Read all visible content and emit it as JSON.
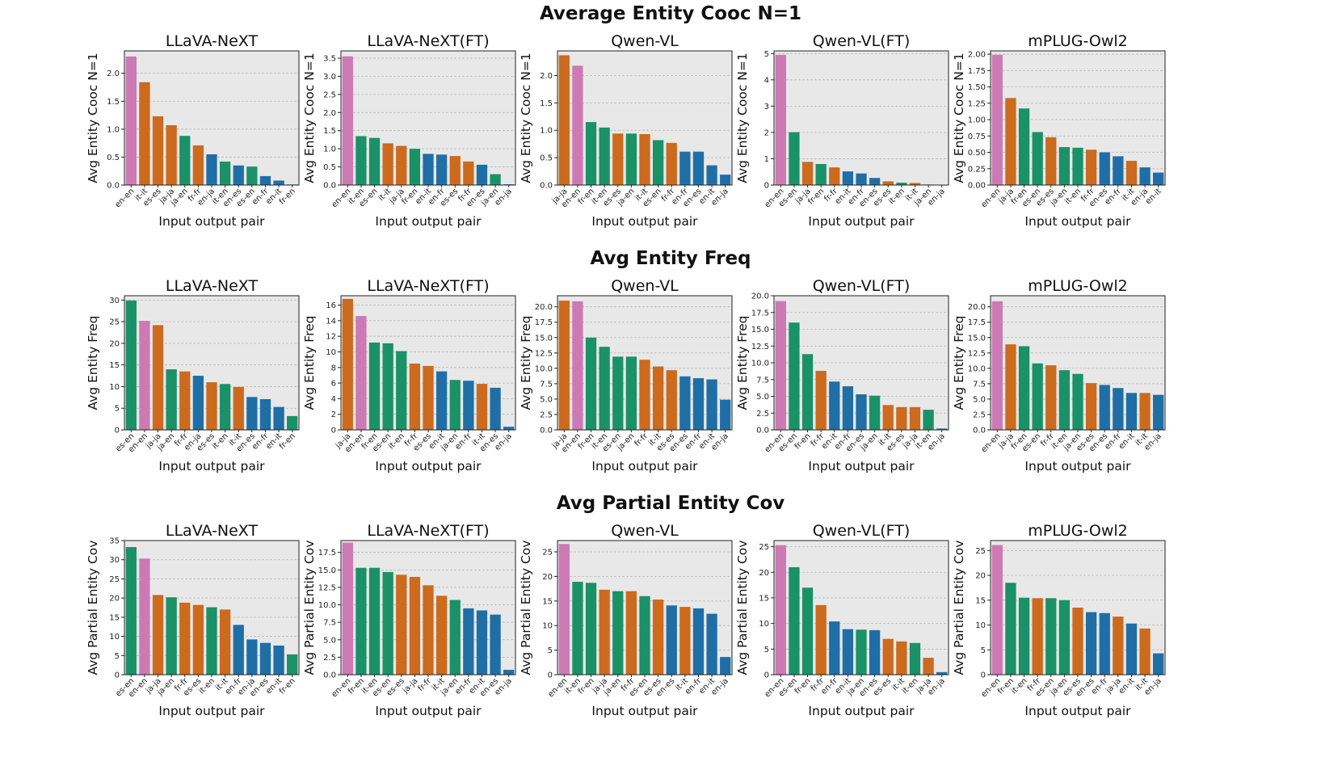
{
  "colors": {
    "en-en": "#cc79b4",
    "orange": "#cc6a1e",
    "green": "#1b9168",
    "blue": "#1f6fa6",
    "panel_bg": "#e8e8e8",
    "grid": "#b8b8b8"
  },
  "chart_data": [
    {
      "section": "Average Entity Cooc N=1",
      "charts": [
        {
          "type": "bar",
          "title": "LLaVA-NeXT",
          "xlabel": "Input output pair",
          "ylabel": "Avg Entity Cooc N=1",
          "ylim": [
            0,
            2.4
          ],
          "yticks": [
            "0.0",
            "0.5",
            "1.0",
            "1.5",
            "2.0"
          ],
          "categories": [
            "en-en",
            "it-it",
            "es-es",
            "ja-ja",
            "ja-en",
            "fr-fr",
            "en-ja",
            "it-en",
            "en-es",
            "es-en",
            "en-fr",
            "en-it",
            "fr-en"
          ],
          "values": [
            2.3,
            1.84,
            1.23,
            1.07,
            0.88,
            0.71,
            0.55,
            0.42,
            0.35,
            0.33,
            0.16,
            0.08,
            0.01
          ]
        },
        {
          "type": "bar",
          "title": "LLaVA-NeXT(FT)",
          "xlabel": "Input output pair",
          "ylabel": "Avg Entity Cooc N=1",
          "ylim": [
            0,
            3.7
          ],
          "yticks": [
            "0.0",
            "0.5",
            "1.0",
            "1.5",
            "2.0",
            "2.5",
            "3.0",
            "3.5"
          ],
          "categories": [
            "en-en",
            "it-en",
            "es-en",
            "it-it",
            "ja-ja",
            "fr-en",
            "en-it",
            "en-fr",
            "es-es",
            "fr-fr",
            "en-es",
            "ja-en",
            "en-ja"
          ],
          "values": [
            3.55,
            1.35,
            1.3,
            1.15,
            1.08,
            1.0,
            0.86,
            0.84,
            0.8,
            0.65,
            0.56,
            0.3,
            0.02
          ]
        },
        {
          "type": "bar",
          "title": "Qwen-VL",
          "xlabel": "Input output pair",
          "ylabel": "Avg Entity Cooc N=1",
          "ylim": [
            0,
            2.45
          ],
          "yticks": [
            "0.0",
            "0.5",
            "1.0",
            "1.5",
            "2.0"
          ],
          "categories": [
            "ja-ja",
            "en-en",
            "fr-en",
            "it-en",
            "es-es",
            "ja-en",
            "it-it",
            "es-en",
            "fr-fr",
            "en-fr",
            "en-es",
            "en-it",
            "en-ja"
          ],
          "values": [
            2.37,
            2.18,
            1.15,
            1.05,
            0.94,
            0.94,
            0.93,
            0.82,
            0.77,
            0.61,
            0.61,
            0.36,
            0.19
          ]
        },
        {
          "type": "bar",
          "title": "Qwen-VL(FT)",
          "xlabel": "Input output pair",
          "ylabel": "Avg Entity Cooc N=1",
          "ylim": [
            0,
            5.1
          ],
          "yticks": [
            "0",
            "1",
            "2",
            "3",
            "4",
            "5"
          ],
          "categories": [
            "en-en",
            "es-en",
            "ja-ja",
            "fr-en",
            "fr-fr",
            "en-it",
            "en-fr",
            "en-es",
            "es-es",
            "it-en",
            "it-it",
            "ja-en",
            "en-ja"
          ],
          "values": [
            4.95,
            2.01,
            0.88,
            0.8,
            0.67,
            0.52,
            0.44,
            0.27,
            0.14,
            0.09,
            0.08,
            0.02,
            0.01
          ]
        },
        {
          "type": "bar",
          "title": "mPLUG-Owl2",
          "xlabel": "Input output pair",
          "ylabel": "Avg Entity Cooc N=1",
          "ylim": [
            0,
            2.05
          ],
          "yticks": [
            "0.00",
            "0.25",
            "0.50",
            "0.75",
            "1.00",
            "1.25",
            "1.50",
            "1.75",
            "2.00"
          ],
          "categories": [
            "en-en",
            "ja-ja",
            "fr-en",
            "es-en",
            "es-es",
            "ja-en",
            "it-en",
            "fr-fr",
            "en-es",
            "en-fr",
            "it-it",
            "en-ja",
            "en-it"
          ],
          "values": [
            1.99,
            1.33,
            1.17,
            0.81,
            0.73,
            0.58,
            0.57,
            0.54,
            0.5,
            0.44,
            0.37,
            0.27,
            0.19
          ]
        }
      ]
    },
    {
      "section": "Avg Entity Freq",
      "charts": [
        {
          "type": "bar",
          "title": "LLaVA-NeXT",
          "xlabel": "Input output pair",
          "ylabel": "Avg Entity Freq",
          "ylim": [
            0,
            31
          ],
          "yticks": [
            "0",
            "5",
            "10",
            "15",
            "20",
            "25",
            "30"
          ],
          "categories": [
            "es-en",
            "en-en",
            "ja-ja",
            "ja-en",
            "fr-fr",
            "en-ja",
            "es-es",
            "it-en",
            "it-it",
            "en-es",
            "en-fr",
            "en-it",
            "fr-en"
          ],
          "values": [
            29.9,
            25.2,
            24.2,
            14.0,
            13.5,
            12.5,
            11.0,
            10.6,
            9.9,
            7.6,
            7.1,
            5.3,
            3.2
          ]
        },
        {
          "type": "bar",
          "title": "LLaVA-NeXT(FT)",
          "xlabel": "Input output pair",
          "ylabel": "Avg Entity Freq",
          "ylim": [
            0,
            17.2
          ],
          "yticks": [
            "0",
            "2",
            "4",
            "6",
            "8",
            "10",
            "12",
            "14",
            "16"
          ],
          "categories": [
            "ja-ja",
            "en-en",
            "fr-en",
            "es-en",
            "it-en",
            "fr-fr",
            "es-es",
            "en-it",
            "ja-en",
            "en-fr",
            "it-it",
            "en-es",
            "en-ja"
          ],
          "values": [
            16.8,
            14.6,
            11.2,
            11.1,
            10.1,
            8.5,
            8.2,
            7.5,
            6.4,
            6.3,
            5.9,
            5.4,
            0.4
          ]
        },
        {
          "type": "bar",
          "title": "Qwen-VL",
          "xlabel": "Input output pair",
          "ylabel": "Avg Entity Freq",
          "ylim": [
            0,
            21.8
          ],
          "yticks": [
            "0.0",
            "2.5",
            "5.0",
            "7.5",
            "10.0",
            "12.5",
            "15.0",
            "17.5",
            "20.0"
          ],
          "categories": [
            "ja-ja",
            "en-en",
            "fr-en",
            "it-en",
            "es-en",
            "ja-en",
            "fr-fr",
            "it-it",
            "es-es",
            "en-es",
            "en-fr",
            "en-it",
            "en-ja"
          ],
          "values": [
            21.0,
            20.9,
            15.0,
            13.5,
            11.9,
            11.9,
            11.4,
            10.3,
            9.7,
            8.7,
            8.4,
            8.2,
            4.9
          ]
        },
        {
          "type": "bar",
          "title": "Qwen-VL(FT)",
          "xlabel": "Input output pair",
          "ylabel": "Avg Entity Freq",
          "ylim": [
            0,
            20.0
          ],
          "yticks": [
            "0.0",
            "2.5",
            "5.0",
            "7.5",
            "10.0",
            "12.5",
            "15.0",
            "17.5",
            "20.0"
          ],
          "categories": [
            "en-en",
            "es-en",
            "fr-en",
            "fr-fr",
            "en-it",
            "en-fr",
            "en-es",
            "ja-en",
            "it-it",
            "es-es",
            "ja-ja",
            "it-en",
            "en-ja"
          ],
          "values": [
            19.2,
            16.0,
            11.3,
            8.8,
            7.2,
            6.5,
            5.3,
            5.1,
            3.7,
            3.4,
            3.4,
            3.0,
            0.2
          ]
        },
        {
          "type": "bar",
          "title": "mPLUG-Owl2",
          "xlabel": "Input output pair",
          "ylabel": "Avg Entity Freq",
          "ylim": [
            0,
            21.8
          ],
          "yticks": [
            "0.0",
            "2.5",
            "5.0",
            "7.5",
            "10.0",
            "12.5",
            "15.0",
            "17.5",
            "20.0"
          ],
          "categories": [
            "en-en",
            "ja-ja",
            "fr-en",
            "es-en",
            "fr-fr",
            "it-en",
            "ja-en",
            "es-es",
            "en-es",
            "en-fr",
            "en-it",
            "it-it",
            "en-ja"
          ],
          "values": [
            20.9,
            13.9,
            13.6,
            10.8,
            10.5,
            9.7,
            9.1,
            7.6,
            7.3,
            6.8,
            6.0,
            6.0,
            5.7
          ]
        }
      ]
    },
    {
      "section": "Avg Partial Entity Cov",
      "charts": [
        {
          "type": "bar",
          "title": "LLaVA-NeXT",
          "xlabel": "Input output pair",
          "ylabel": "Avg Partial Entity Cov",
          "ylim": [
            0,
            35
          ],
          "yticks": [
            "0",
            "5",
            "10",
            "15",
            "20",
            "25",
            "30",
            "35"
          ],
          "categories": [
            "es-en",
            "en-en",
            "ja-ja",
            "ja-en",
            "fr-fr",
            "es-es",
            "it-en",
            "it-it",
            "en-fr",
            "en-ja",
            "en-es",
            "en-it",
            "fr-en"
          ],
          "values": [
            33.3,
            30.3,
            20.8,
            20.2,
            18.8,
            18.2,
            17.6,
            17.0,
            13.0,
            9.2,
            8.3,
            7.6,
            5.3
          ]
        },
        {
          "type": "bar",
          "title": "LLaVA-NeXT(FT)",
          "xlabel": "Input output pair",
          "ylabel": "Avg Partial Entity Cov",
          "ylim": [
            0,
            19.2
          ],
          "yticks": [
            "0.0",
            "2.5",
            "5.0",
            "7.5",
            "10.0",
            "12.5",
            "15.0",
            "17.5"
          ],
          "categories": [
            "en-en",
            "fr-en",
            "it-en",
            "es-en",
            "es-es",
            "ja-ja",
            "fr-fr",
            "it-it",
            "ja-en",
            "en-fr",
            "en-it",
            "en-es",
            "en-ja"
          ],
          "values": [
            18.9,
            15.3,
            15.3,
            14.7,
            14.3,
            14.0,
            12.8,
            11.3,
            10.7,
            9.5,
            9.2,
            8.6,
            0.7
          ]
        },
        {
          "type": "bar",
          "title": "Qwen-VL",
          "xlabel": "Input output pair",
          "ylabel": "Avg Partial Entity Cov",
          "ylim": [
            0,
            27.3
          ],
          "yticks": [
            "0",
            "5",
            "10",
            "15",
            "20",
            "25"
          ],
          "categories": [
            "en-en",
            "it-en",
            "fr-en",
            "ja-ja",
            "ja-en",
            "fr-fr",
            "es-en",
            "es-es",
            "en-es",
            "it-it",
            "en-fr",
            "en-it",
            "en-ja"
          ],
          "values": [
            26.6,
            18.9,
            18.7,
            17.3,
            17.0,
            17.0,
            16.0,
            15.3,
            14.1,
            13.8,
            13.5,
            12.4,
            3.6
          ]
        },
        {
          "type": "bar",
          "title": "Qwen-VL(FT)",
          "xlabel": "Input output pair",
          "ylabel": "Avg Partial Entity Cov",
          "ylim": [
            0,
            26.2
          ],
          "yticks": [
            "0",
            "5",
            "10",
            "15",
            "20",
            "25"
          ],
          "categories": [
            "en-en",
            "es-en",
            "fr-en",
            "fr-fr",
            "en-fr",
            "en-it",
            "ja-en",
            "en-es",
            "es-es",
            "it-it",
            "it-en",
            "ja-ja",
            "en-ja"
          ],
          "values": [
            25.3,
            21.0,
            17.0,
            13.6,
            10.4,
            8.9,
            8.8,
            8.7,
            7.0,
            6.5,
            6.2,
            3.3,
            0.5
          ]
        },
        {
          "type": "bar",
          "title": "mPLUG-Owl2",
          "xlabel": "Input output pair",
          "ylabel": "Avg Partial Entity Cov",
          "ylim": [
            0,
            27.0
          ],
          "yticks": [
            "0",
            "5",
            "10",
            "15",
            "20",
            "25"
          ],
          "categories": [
            "en-en",
            "fr-en",
            "it-en",
            "fr-fr",
            "es-en",
            "ja-en",
            "es-es",
            "en-es",
            "en-fr",
            "ja-ja",
            "en-it",
            "it-it",
            "en-ja"
          ],
          "values": [
            26.1,
            18.5,
            15.5,
            15.4,
            15.4,
            15.0,
            13.5,
            12.6,
            12.4,
            11.7,
            10.3,
            9.3,
            4.3
          ]
        }
      ]
    }
  ]
}
